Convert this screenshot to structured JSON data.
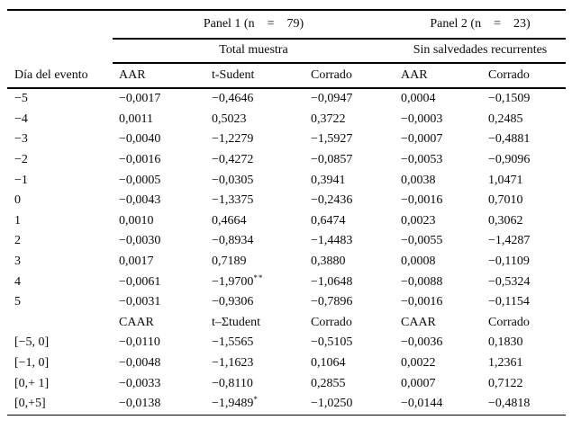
{
  "table": {
    "row_header": "Día del evento",
    "panel1_label": "Panel 1 (n    =    79)",
    "panel2_label": "Panel 2 (n    =    23)",
    "subheader1": "Total muestra",
    "subheader2": "Sin salvedades recurrentes",
    "aar_columns": [
      "AAR",
      "t-Sudent",
      "Corrado",
      "AAR",
      "Corrado"
    ],
    "caar_columns": [
      "CAAR",
      "t–Σtudent",
      "Corrado",
      "CAAR",
      "Corrado"
    ],
    "aar_rows": [
      {
        "label": "−5",
        "cells": [
          "−0,0017",
          "−0,4646",
          "−0,0947",
          "0,0004",
          "−0,1509"
        ]
      },
      {
        "label": "−4",
        "cells": [
          "0,0011",
          "0,5023",
          "0,3722",
          "−0,0003",
          "0,2485"
        ]
      },
      {
        "label": "−3",
        "cells": [
          "−0,0040",
          "−1,2279",
          "−1,5927",
          "−0,0007",
          "−0,4881"
        ]
      },
      {
        "label": "−2",
        "cells": [
          "−0,0016",
          "−0,4272",
          "−0,0857",
          "−0,0053",
          "−0,9096"
        ]
      },
      {
        "label": "−1",
        "cells": [
          "−0,0005",
          "−0,0305",
          "0,3941",
          "0,0038",
          "1,0471"
        ]
      },
      {
        "label": "0",
        "cells": [
          "−0,0043",
          "−1,3375",
          "−0,2436",
          "−0,0016",
          "0,7010"
        ]
      },
      {
        "label": "1",
        "cells": [
          "0,0010",
          "0,4664",
          "0,6474",
          "0,0023",
          "0,3062"
        ]
      },
      {
        "label": "2",
        "cells": [
          "−0,0030",
          "−0,8934",
          "−1,4483",
          "−0,0055",
          "−1,4287"
        ]
      },
      {
        "label": "3",
        "cells": [
          "0,0017",
          "0,7189",
          "0,3880",
          "0,0008",
          "−0,1109"
        ]
      },
      {
        "label": "4",
        "cells": [
          "−0,0061",
          {
            "v": "−1,9700",
            "sup": "**"
          },
          "−1,0648",
          "−0,0088",
          "−0,5324"
        ]
      },
      {
        "label": "5",
        "cells": [
          "−0,0031",
          "−0,9306",
          "−0,7896",
          "−0,0016",
          "−0,1154"
        ]
      }
    ],
    "caar_rows": [
      {
        "label": "[−5, 0]",
        "cells": [
          "−0,0110",
          "−1,5565",
          "−0,5105",
          "−0,0036",
          "0,1830"
        ]
      },
      {
        "label": "[−1, 0]",
        "cells": [
          "−0,0048",
          "−1,1623",
          "0,1064",
          "0,0022",
          "1,2361"
        ]
      },
      {
        "label": "[0,+ 1]",
        "cells": [
          "−0,0033",
          "−0,8110",
          "0,2855",
          "0,0007",
          "0,7122"
        ]
      },
      {
        "label": "[0,+5]",
        "cells": [
          "−0,0138",
          {
            "v": "−1,9489",
            "sup": "*"
          },
          "−1,0250",
          "−0,0144",
          "−0,4818"
        ]
      }
    ],
    "colors": {
      "text": "#0a0a0a",
      "rule": "#000000",
      "background": "#ffffff"
    }
  }
}
